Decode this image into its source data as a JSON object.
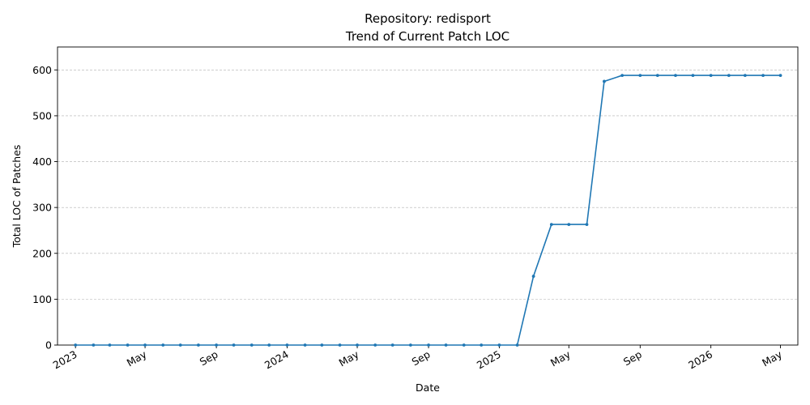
{
  "chart_data": {
    "type": "line",
    "title": "Repository: redisport",
    "subtitle": "Trend of Current Patch LOC",
    "xlabel": "Date",
    "ylabel": "Total LOC of Patches",
    "ylim": [
      0,
      650
    ],
    "xlim": [
      "2022-12-01",
      "2026-05-31"
    ],
    "yticks": [
      0,
      100,
      200,
      300,
      400,
      500,
      600
    ],
    "xticks": [
      {
        "date": "2023-01-01",
        "label": "2023"
      },
      {
        "date": "2023-05-01",
        "label": "May"
      },
      {
        "date": "2023-09-01",
        "label": "Sep"
      },
      {
        "date": "2024-01-01",
        "label": "2024"
      },
      {
        "date": "2024-05-01",
        "label": "May"
      },
      {
        "date": "2024-09-01",
        "label": "Sep"
      },
      {
        "date": "2025-01-01",
        "label": "2025"
      },
      {
        "date": "2025-05-01",
        "label": "May"
      },
      {
        "date": "2025-09-01",
        "label": "Sep"
      },
      {
        "date": "2026-01-01",
        "label": "2026"
      },
      {
        "date": "2026-05-01",
        "label": "May"
      }
    ],
    "grid": "y-dashed",
    "line_color": "#1f77b4",
    "x": [
      "2023-01-01",
      "2023-02-01",
      "2023-03-01",
      "2023-04-01",
      "2023-05-01",
      "2023-06-01",
      "2023-07-01",
      "2023-08-01",
      "2023-09-01",
      "2023-10-01",
      "2023-11-01",
      "2023-12-01",
      "2024-01-01",
      "2024-02-01",
      "2024-03-01",
      "2024-04-01",
      "2024-05-01",
      "2024-06-01",
      "2024-07-01",
      "2024-08-01",
      "2024-09-01",
      "2024-10-01",
      "2024-11-01",
      "2024-12-01",
      "2025-01-01",
      "2025-02-01",
      "2025-03-01",
      "2025-04-01",
      "2025-05-01",
      "2025-06-01",
      "2025-07-01",
      "2025-08-01",
      "2025-09-01",
      "2025-10-01",
      "2025-11-01",
      "2025-12-01",
      "2026-01-01",
      "2026-02-01",
      "2026-03-01",
      "2026-04-01",
      "2026-05-01"
    ],
    "series": [
      {
        "values": [
          0,
          0,
          0,
          0,
          0,
          0,
          0,
          0,
          0,
          0,
          0,
          0,
          0,
          0,
          0,
          0,
          0,
          0,
          0,
          0,
          0,
          0,
          0,
          0,
          0,
          0,
          150,
          263,
          263,
          263,
          575,
          588,
          588,
          588,
          588,
          588,
          588,
          588,
          588,
          588,
          588
        ]
      }
    ]
  }
}
